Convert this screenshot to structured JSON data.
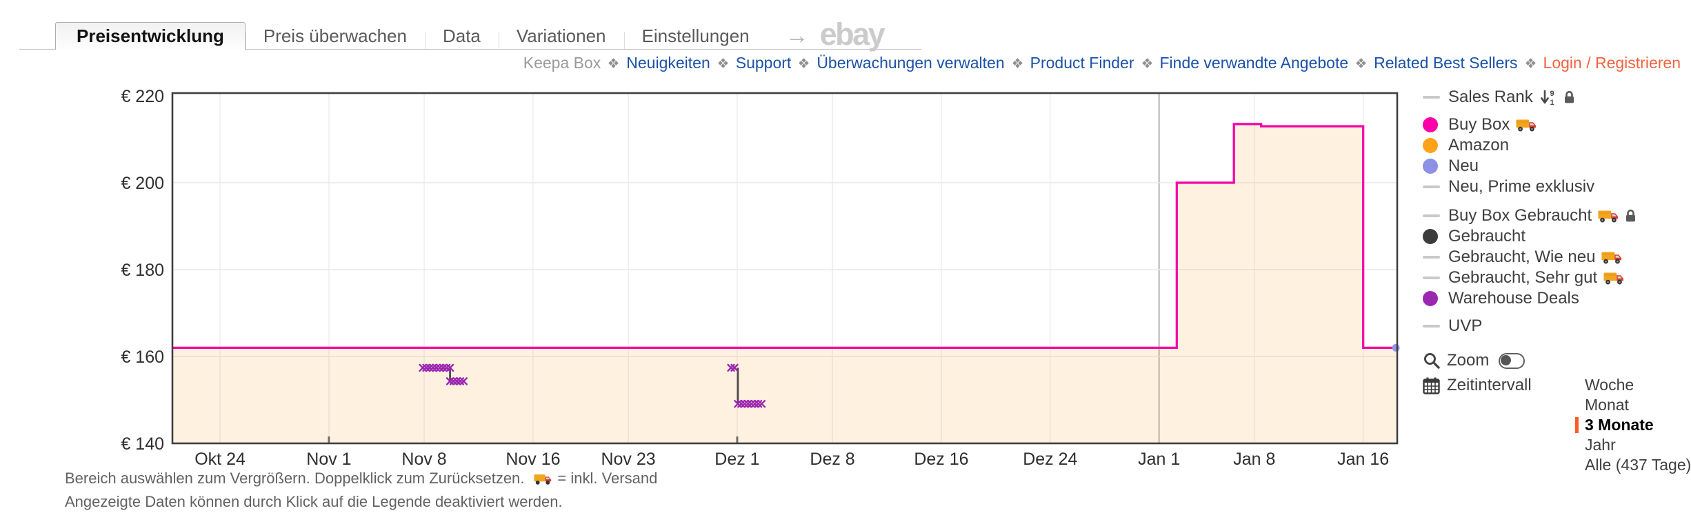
{
  "header": {
    "tabs": [
      {
        "label": "Preisentwicklung",
        "active": true
      },
      {
        "label": "Preis überwachen",
        "active": false
      },
      {
        "label": "Data",
        "active": false
      },
      {
        "label": "Variationen",
        "active": false
      },
      {
        "label": "Einstellungen",
        "active": false
      }
    ],
    "ebay_logo": "ebay"
  },
  "nav": {
    "items": [
      {
        "label": "Keepa Box",
        "type": "text"
      },
      {
        "label": "Neuigkeiten",
        "type": "link"
      },
      {
        "label": "Support",
        "type": "link"
      },
      {
        "label": "Überwachungen verwalten",
        "type": "link"
      },
      {
        "label": "Product Finder",
        "type": "link"
      },
      {
        "label": "Finde verwandte Angebote",
        "type": "link"
      },
      {
        "label": "Related Best Sellers",
        "type": "link"
      },
      {
        "label": "Login / Registrieren",
        "type": "accent"
      }
    ],
    "colors": {
      "text": "#9a9a9a",
      "link": "#1b52a8",
      "accent": "#f4623e",
      "separator": "#8f8f8f"
    }
  },
  "chart_data": {
    "type": "line",
    "subtype": "step",
    "title": "",
    "ylim": [
      140,
      220
    ],
    "y_ticks": [
      {
        "value": 220,
        "label": "€ 220"
      },
      {
        "value": 200,
        "label": "€ 200"
      },
      {
        "value": 180,
        "label": "€ 180"
      },
      {
        "value": 160,
        "label": "€ 160"
      },
      {
        "value": 140,
        "label": "€ 140"
      }
    ],
    "xlim_days": [
      0,
      90
    ],
    "x_ticks": [
      {
        "day": 3.5,
        "label": "Okt 24"
      },
      {
        "day": 11.5,
        "label": "Nov 1"
      },
      {
        "day": 18.5,
        "label": "Nov 8"
      },
      {
        "day": 26.5,
        "label": "Nov 16"
      },
      {
        "day": 33.5,
        "label": "Nov 23"
      },
      {
        "day": 41.5,
        "label": "Dez 1"
      },
      {
        "day": 48.5,
        "label": "Dez 8"
      },
      {
        "day": 56.5,
        "label": "Dez 16"
      },
      {
        "day": 64.5,
        "label": "Dez 24"
      },
      {
        "day": 72.5,
        "label": "Jan 1"
      },
      {
        "day": 79.5,
        "label": "Jan 8"
      },
      {
        "day": 87.5,
        "label": "Jan 16"
      }
    ],
    "year_boundary_day": 72.5,
    "month_start_marks": [
      11.5,
      41.5
    ],
    "grid": true,
    "legend_position": "right",
    "series": [
      {
        "name": "Buy Box",
        "style": "step",
        "color": "#f400a6",
        "fill": "rgba(255,171,64,0.16)",
        "points_day_price": [
          [
            0,
            162
          ],
          [
            73.8,
            162
          ],
          [
            73.8,
            200
          ],
          [
            78,
            200
          ],
          [
            78,
            213.5
          ],
          [
            80,
            213.5
          ],
          [
            80,
            213
          ],
          [
            87.5,
            213
          ],
          [
            87.5,
            162
          ],
          [
            89.9,
            162
          ]
        ],
        "end_marker": {
          "day": 89.9,
          "price": 162,
          "color": "#9595ec"
        }
      },
      {
        "name": "Gebraucht",
        "style": "segments",
        "color": "#4a4a4a",
        "segments_day_price": [
          [
            [
              20.4,
              157.4
            ],
            [
              20.4,
              154.3
            ]
          ],
          [
            [
              41.55,
              157.4
            ],
            [
              41.55,
              149.1
            ]
          ]
        ]
      },
      {
        "name": "Warehouse Deals",
        "style": "x-markers",
        "color": "#9b27b0",
        "marker_step_days": 0.25,
        "marker_rows": [
          {
            "price": 157.4,
            "from_day": 18.4,
            "to_day": 20.4
          },
          {
            "price": 154.3,
            "from_day": 20.4,
            "to_day": 21.5
          },
          {
            "price": 157.4,
            "from_day": 41.05,
            "to_day": 41.3
          },
          {
            "price": 149.1,
            "from_day": 41.55,
            "to_day": 43.3
          }
        ]
      }
    ]
  },
  "legend": {
    "line_marker_color": "#c9c9c9",
    "groups": [
      [
        {
          "marker": "line",
          "label": "Sales Rank",
          "icons": [
            "sort-numeric-icon",
            "lock-icon"
          ]
        }
      ],
      [
        {
          "marker": "circle",
          "color": "#fb00a9",
          "label": "Buy Box",
          "icons": [
            "truck-icon"
          ]
        },
        {
          "marker": "circle",
          "color": "#ffa218",
          "label": "Amazon",
          "icons": []
        },
        {
          "marker": "circle",
          "color": "#8e8fe6",
          "label": "Neu",
          "icons": []
        },
        {
          "marker": "line",
          "label": "Neu, Prime exklusiv",
          "icons": []
        }
      ],
      [
        {
          "marker": "line",
          "label": "Buy Box Gebraucht",
          "icons": [
            "truck-icon",
            "lock-icon"
          ]
        },
        {
          "marker": "circle",
          "color": "#3c3c3c",
          "label": "Gebraucht",
          "icons": []
        },
        {
          "marker": "line",
          "label": "Gebraucht, Wie neu",
          "icons": [
            "truck-icon"
          ]
        },
        {
          "marker": "line",
          "label": "Gebraucht, Sehr gut",
          "icons": [
            "truck-icon"
          ]
        },
        {
          "marker": "circle",
          "color": "#9b27b0",
          "label": "Warehouse Deals",
          "icons": []
        }
      ],
      [
        {
          "marker": "line",
          "label": "UVP",
          "icons": []
        }
      ]
    ]
  },
  "controls": {
    "zoom_label": "Zoom",
    "zoom_toggle_state": "off",
    "interval_label": "Zeitintervall",
    "interval_options": [
      "Woche",
      "Monat",
      "3 Monate",
      "Jahr",
      "Alle (437 Tage)"
    ],
    "interval_selected": "3 Monate",
    "selected_accent": "#ff5a26"
  },
  "footer": {
    "line1_before_truck": "Bereich auswählen zum Vergrößern. Doppelklick zum Zurücksetzen.",
    "line1_after_truck": "= inkl. Versand",
    "line2": "Angezeigte Daten können durch Klick auf die Legende deaktiviert werden."
  }
}
